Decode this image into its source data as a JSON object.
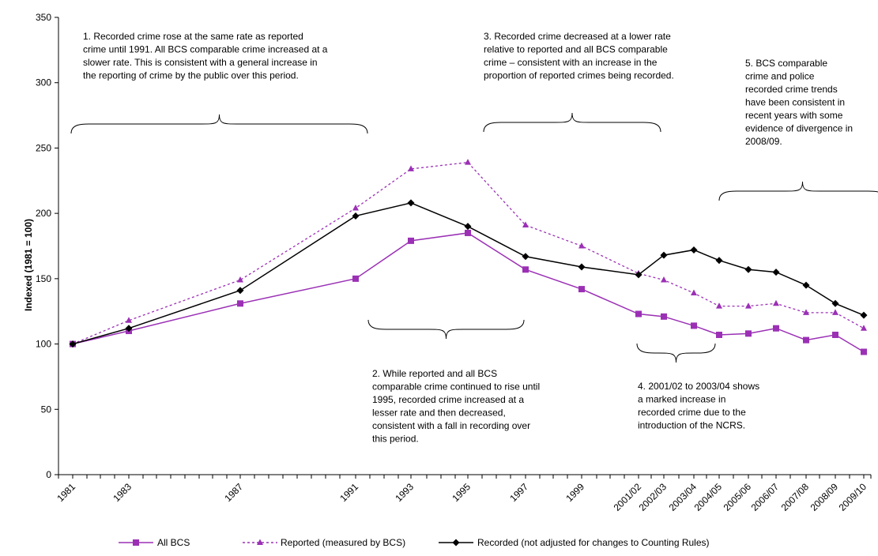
{
  "chart_data": {
    "type": "line",
    "title": "",
    "xlabel": "",
    "ylabel": "Indexed (1981 = 100)",
    "ylim": [
      0,
      350
    ],
    "y_ticks": [
      0,
      50,
      100,
      150,
      200,
      250,
      300,
      350
    ],
    "x_tick_labels": [
      "1981",
      "1983",
      "1987",
      "1991",
      "1993",
      "1995",
      "1997",
      "1999",
      "2001/02",
      "2002/03",
      "2003/04",
      "2004/05",
      "2005/06",
      "2006/07",
      "2007/08",
      "2008/09",
      "2009/10"
    ],
    "grid": false,
    "legend_position": "bottom",
    "series": [
      {
        "name": "All BCS",
        "color": "#9b30b5",
        "line_style": "solid",
        "marker": "square",
        "points": [
          {
            "x": "1981",
            "y": 100
          },
          {
            "x": "1983",
            "y": 110
          },
          {
            "x": "1987",
            "y": 131
          },
          {
            "x": "1991",
            "y": 150
          },
          {
            "x": "1993",
            "y": 179
          },
          {
            "x": "1995",
            "y": 185
          },
          {
            "x": "1997",
            "y": 157
          },
          {
            "x": "1999",
            "y": 142
          },
          {
            "x": "2001/02",
            "y": 123
          },
          {
            "x": "2002/03",
            "y": 121
          },
          {
            "x": "2003/04",
            "y": 114
          },
          {
            "x": "2004/05",
            "y": 107
          },
          {
            "x": "2005/06",
            "y": 108
          },
          {
            "x": "2006/07",
            "y": 112
          },
          {
            "x": "2007/08",
            "y": 103
          },
          {
            "x": "2008/09",
            "y": 107
          },
          {
            "x": "2009/10",
            "y": 94
          }
        ]
      },
      {
        "name": "Reported (measured by BCS)",
        "color": "#9b30b5",
        "line_style": "dotted",
        "marker": "triangle",
        "points": [
          {
            "x": "1981",
            "y": 100
          },
          {
            "x": "1983",
            "y": 118
          },
          {
            "x": "1987",
            "y": 149
          },
          {
            "x": "1991",
            "y": 204
          },
          {
            "x": "1993",
            "y": 234
          },
          {
            "x": "1995",
            "y": 239
          },
          {
            "x": "1997",
            "y": 191
          },
          {
            "x": "1999",
            "y": 175
          },
          {
            "x": "2001/02",
            "y": 154
          },
          {
            "x": "2002/03",
            "y": 149
          },
          {
            "x": "2003/04",
            "y": 139
          },
          {
            "x": "2004/05",
            "y": 129
          },
          {
            "x": "2005/06",
            "y": 129
          },
          {
            "x": "2006/07",
            "y": 131
          },
          {
            "x": "2007/08",
            "y": 124
          },
          {
            "x": "2008/09",
            "y": 124
          },
          {
            "x": "2009/10",
            "y": 112
          }
        ]
      },
      {
        "name": "Recorded (not adjusted for changes to Counting Rules)",
        "color": "#000000",
        "line_style": "solid",
        "marker": "diamond",
        "points": [
          {
            "x": "1981",
            "y": 100
          },
          {
            "x": "1983",
            "y": 112
          },
          {
            "x": "1987",
            "y": 141
          },
          {
            "x": "1991",
            "y": 198
          },
          {
            "x": "1993",
            "y": 208
          },
          {
            "x": "1995",
            "y": 190
          },
          {
            "x": "1997",
            "y": 167
          },
          {
            "x": "1999",
            "y": 159
          },
          {
            "x": "2001/02",
            "y": 153
          },
          {
            "x": "2002/03",
            "y": 168
          },
          {
            "x": "2003/04",
            "y": 172
          },
          {
            "x": "2004/05",
            "y": 164
          },
          {
            "x": "2005/06",
            "y": 157
          },
          {
            "x": "2006/07",
            "y": 155
          },
          {
            "x": "2007/08",
            "y": 145
          },
          {
            "x": "2008/09",
            "y": 131
          },
          {
            "x": "2009/10",
            "y": 122
          }
        ]
      }
    ],
    "annotations": [
      {
        "id": "note-1",
        "lines": [
          "1. Recorded crime rose at the same rate as reported",
          "crime until 1991. All BCS comparable crime increased at a",
          "slower rate. This is consistent with a general increase in",
          "the reporting of crime by the public over this period."
        ]
      },
      {
        "id": "note-2",
        "lines": [
          "2. While reported and all BCS",
          "comparable crime continued to rise until",
          "1995, recorded crime increased at a",
          "lesser rate and then decreased,",
          "consistent with a fall in recording over",
          "this period."
        ]
      },
      {
        "id": "note-3",
        "lines": [
          "3. Recorded crime decreased at a lower rate",
          "relative to reported and all BCS comparable",
          "crime –  consistent with an increase in the",
          "proportion of reported crimes being recorded."
        ]
      },
      {
        "id": "note-4",
        "lines": [
          "4. 2001/02 to 2003/04 shows",
          "a marked increase in",
          "recorded crime due to the",
          "introduction of the NCRS."
        ]
      },
      {
        "id": "note-5",
        "lines": [
          "5. BCS comparable",
          "crime and police",
          "recorded crime trends",
          "have been consistent in",
          "recent years with some",
          "evidence of divergence in",
          "2008/09."
        ]
      }
    ]
  }
}
